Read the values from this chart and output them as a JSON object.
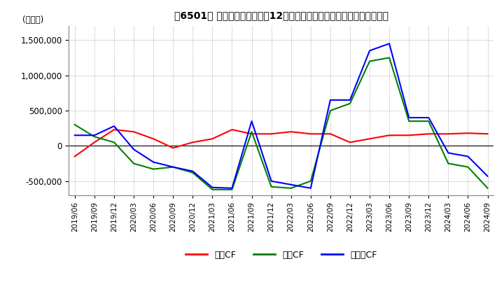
{
  "title": "［6501］ キャッシュフローの12か月移動合計の対前年同期増減額の推移",
  "ylabel": "(百万円)",
  "ylim": [
    -700000,
    1700000
  ],
  "yticks": [
    -500000,
    0,
    500000,
    1000000,
    1500000
  ],
  "legend_labels": [
    "営業CF",
    "投賃CF",
    "フリーCF"
  ],
  "legend_colors": [
    "#ff0000",
    "#008000",
    "#0000ff"
  ],
  "x_labels": [
    "2019/06",
    "2019/09",
    "2019/12",
    "2020/03",
    "2020/06",
    "2020/09",
    "2020/12",
    "2021/03",
    "2021/06",
    "2021/09",
    "2021/12",
    "2022/03",
    "2022/06",
    "2022/09",
    "2022/12",
    "2023/03",
    "2023/06",
    "2023/09",
    "2023/12",
    "2024/03",
    "2024/06",
    "2024/09"
  ],
  "operating_cf": [
    -150000,
    50000,
    230000,
    200000,
    100000,
    -30000,
    50000,
    100000,
    230000,
    170000,
    170000,
    200000,
    170000,
    170000,
    50000,
    100000,
    150000,
    150000,
    170000,
    170000,
    180000,
    170000
  ],
  "investing_cf": [
    300000,
    130000,
    50000,
    -250000,
    -330000,
    -300000,
    -380000,
    -620000,
    -620000,
    200000,
    -580000,
    -600000,
    -500000,
    500000,
    600000,
    1200000,
    1250000,
    350000,
    350000,
    -250000,
    -300000,
    -600000
  ],
  "free_cf": [
    150000,
    150000,
    280000,
    -50000,
    -230000,
    -300000,
    -360000,
    -590000,
    -600000,
    350000,
    -500000,
    -550000,
    -600000,
    650000,
    650000,
    1350000,
    1450000,
    400000,
    400000,
    -100000,
    -150000,
    -430000
  ]
}
